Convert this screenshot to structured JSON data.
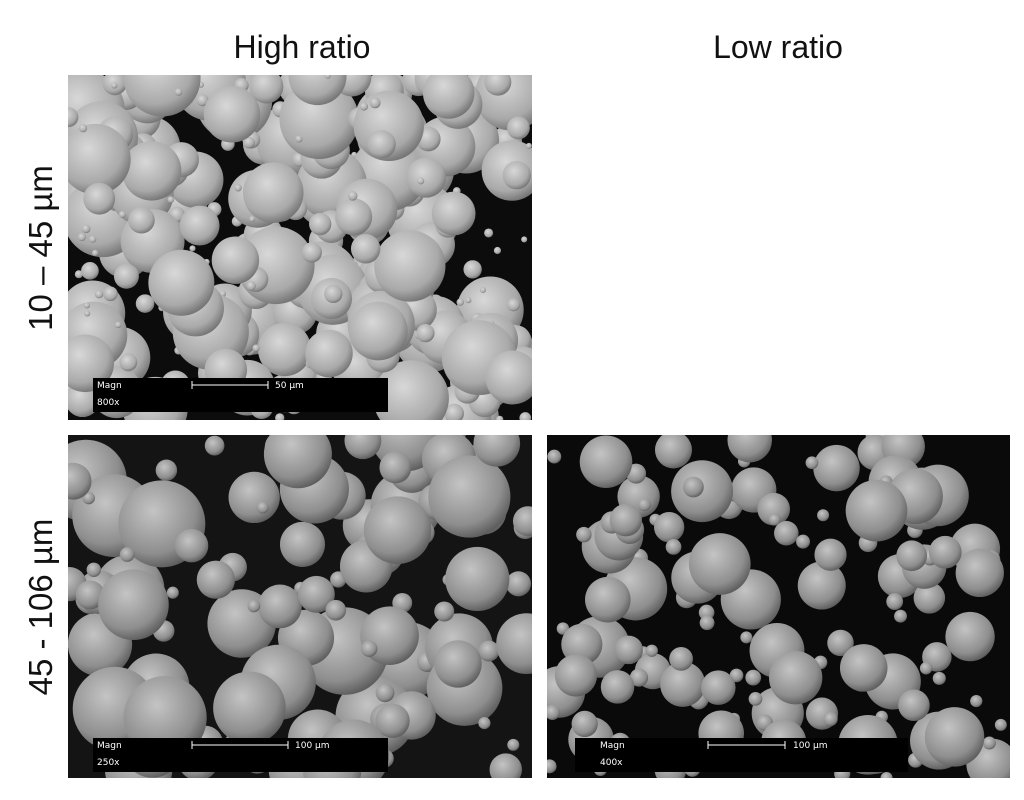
{
  "columns": [
    "High ratio",
    "Low ratio"
  ],
  "rows": [
    "10 – 45 µm",
    "45 - 106 µm"
  ],
  "panels": [
    {
      "magn_label": "Magn",
      "magnification": "800x",
      "scale": "50 µm"
    },
    {
      "magn_label": "Magn",
      "magnification": "250x",
      "scale": "100 µm"
    },
    {
      "magn_label": "Magn",
      "magnification": "400x",
      "scale": "100 µm"
    }
  ]
}
